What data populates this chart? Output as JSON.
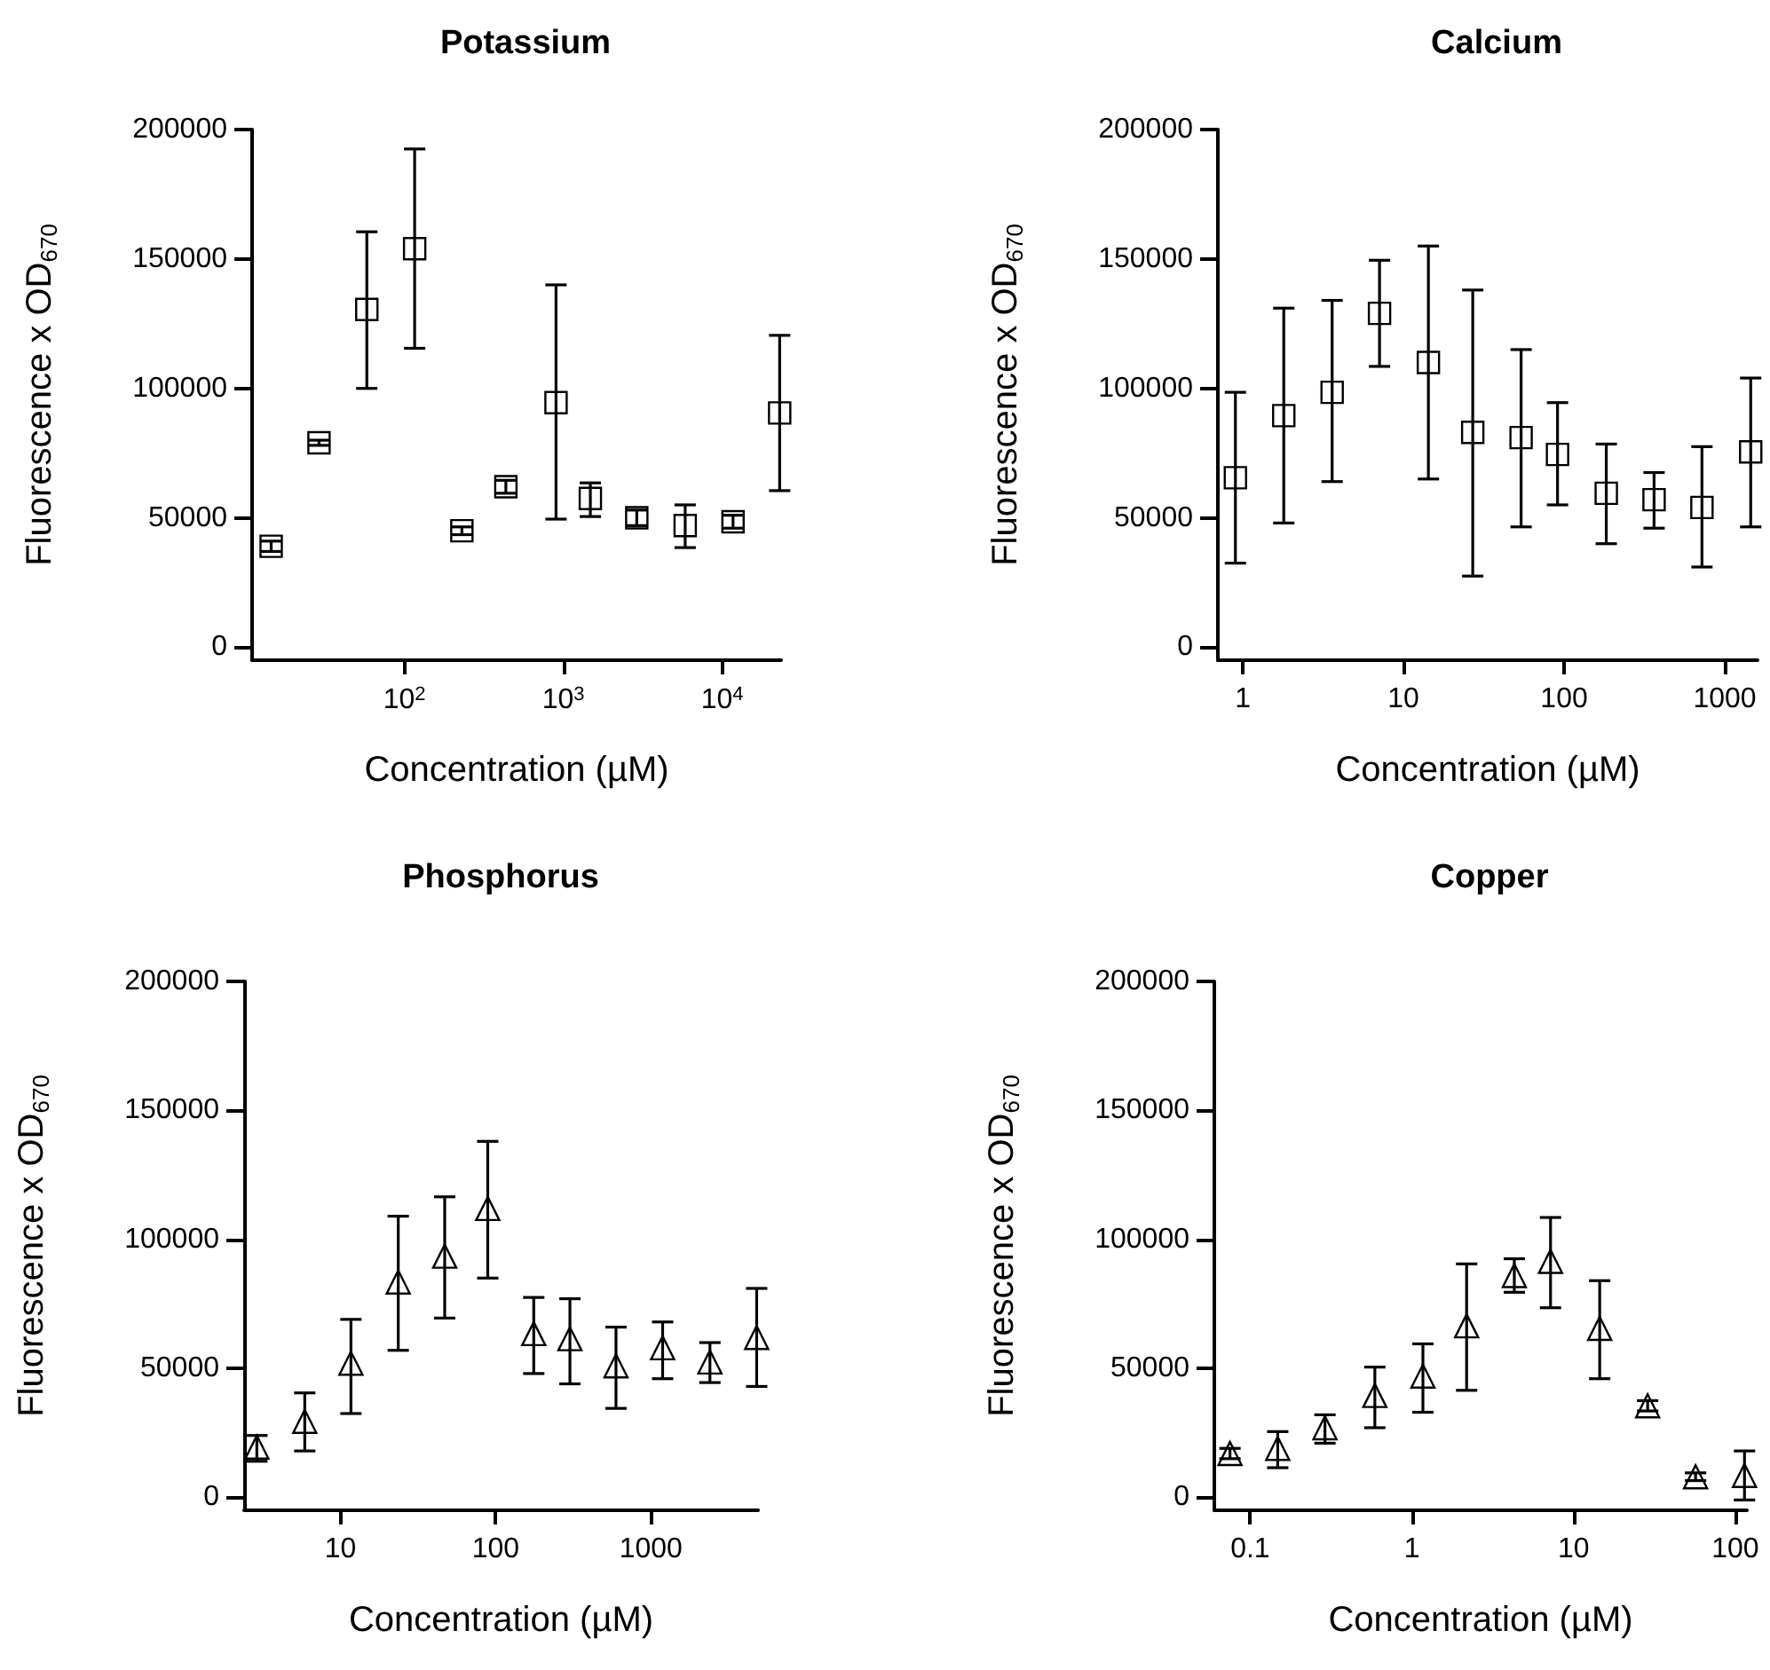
{
  "chart_data": [
    {
      "type": "scatter",
      "title": "Potassium",
      "xlabel": "Concentration (µM)",
      "ylabel": "Fluorescence x OD$_{670}$",
      "log": "x",
      "marker": "square",
      "color": "#000000",
      "x": [
        14.5,
        29,
        58,
        116,
        230,
        435,
        900,
        1480,
        2900,
        5850,
        11700,
        23000
      ],
      "values": [
        39000,
        79000,
        130500,
        154000,
        45000,
        62000,
        94500,
        57500,
        50000,
        47000,
        48500,
        90500
      ],
      "errors": [
        2000,
        1000,
        [
          100000,
          160500
        ],
        [
          115500,
          192500
        ],
        1500,
        2500,
        [
          49500,
          140000
        ],
        [
          50500,
          63500
        ],
        3000,
        [
          38500,
          55000
        ],
        2500,
        [
          60500,
          120500
        ]
      ],
      "xlim": [
        11,
        23500
      ],
      "xticks": [
        {
          "value": 100,
          "label": "10$^{2}$"
        },
        {
          "value": 1000,
          "label": "10$^{3}$"
        },
        {
          "value": 10000,
          "label": "10$^{4}$"
        }
      ],
      "ylim": [
        -5000,
        200000
      ],
      "yticks": [
        0,
        50000,
        100000,
        150000,
        200000
      ]
    },
    {
      "type": "scatter",
      "title": "Calcium",
      "xlabel": "Concentration (µM)",
      "ylabel": "Fluorescence x OD$_{670}$",
      "log": "x",
      "marker": "square",
      "color": "#000000",
      "x": [
        0.9,
        1.8,
        3.6,
        7.1,
        14.3,
        27,
        54,
        91,
        183,
        363,
        721,
        1450
      ],
      "values": [
        65500,
        89500,
        98500,
        129000,
        110000,
        83000,
        81000,
        74500,
        59500,
        57000,
        54000,
        75500
      ],
      "errors": [
        [
          32500,
          98500
        ],
        [
          48000,
          131000
        ],
        [
          64000,
          134000
        ],
        [
          108500,
          149500
        ],
        [
          65000,
          155000
        ],
        [
          27500,
          138000
        ],
        [
          46500,
          115000
        ],
        [
          55000,
          94500
        ],
        [
          40000,
          78500
        ],
        [
          46000,
          67500
        ],
        [
          31000,
          77500
        ],
        [
          46500,
          104000
        ]
      ],
      "xlim": [
        0.7,
        1600
      ],
      "xticks": [
        1,
        10,
        100,
        1000
      ],
      "ylim": [
        -5000,
        200000
      ],
      "yticks": [
        0,
        50000,
        100000,
        150000,
        200000
      ]
    },
    {
      "type": "scatter",
      "title": "Phosphorus",
      "xlabel": "Concentration (µM)",
      "ylabel": "Fluorescence x OD$_{670}$",
      "log": "x",
      "marker": "triangle",
      "color": "#000000",
      "x": [
        2.9,
        5.9,
        11.7,
        23.6,
        47,
        89,
        176,
        301,
        596,
        1190,
        2400,
        4800
      ],
      "values": [
        19500,
        29500,
        52000,
        83500,
        93500,
        112000,
        63500,
        61500,
        51000,
        58000,
        52500,
        62000
      ],
      "errors": [
        [
          14000,
          24000
        ],
        [
          18000,
          40500
        ],
        [
          32500,
          69000
        ],
        [
          57000,
          109000
        ],
        [
          69500,
          116500
        ],
        [
          85000,
          138000
        ],
        [
          48000,
          77500
        ],
        [
          44000,
          77000
        ],
        [
          34500,
          66000
        ],
        [
          46000,
          68000
        ],
        [
          44500,
          60000
        ],
        [
          43000,
          81000
        ]
      ],
      "xlim": [
        2.4,
        4900
      ],
      "xticks": [
        10,
        100,
        1000
      ],
      "ylim": [
        -5000,
        200000
      ],
      "yticks": [
        0,
        50000,
        100000,
        150000,
        200000
      ]
    },
    {
      "type": "scatter",
      "title": "Copper",
      "xlabel": "Concentration (µM)",
      "ylabel": "Fluorescence x OD$_{670}$",
      "log": "x",
      "marker": "triangle",
      "color": "#000000",
      "x": [
        0.075,
        0.148,
        0.29,
        0.59,
        1.17,
        2.18,
        4.3,
        7.2,
        14.5,
        28.7,
        56.8,
        114
      ],
      "values": [
        17000,
        19000,
        27000,
        39500,
        47000,
        66500,
        86000,
        91500,
        65500,
        35500,
        8000,
        8500
      ],
      "errors": [
        2000,
        [
          11500,
          25500
        ],
        [
          21000,
          32000
        ],
        [
          27000,
          50500
        ],
        [
          33000,
          59500
        ],
        [
          41500,
          90500
        ],
        [
          79500,
          92500
        ],
        [
          73500,
          108500
        ],
        [
          46000,
          84000
        ],
        2000,
        1500,
        [
          -1000,
          18000
        ]
      ],
      "xlim": [
        0.06,
        118
      ],
      "xticks": [
        0.1,
        1,
        10,
        100
      ],
      "ylim": [
        -5000,
        200000
      ],
      "yticks": [
        0,
        50000,
        100000,
        150000,
        200000
      ]
    }
  ]
}
